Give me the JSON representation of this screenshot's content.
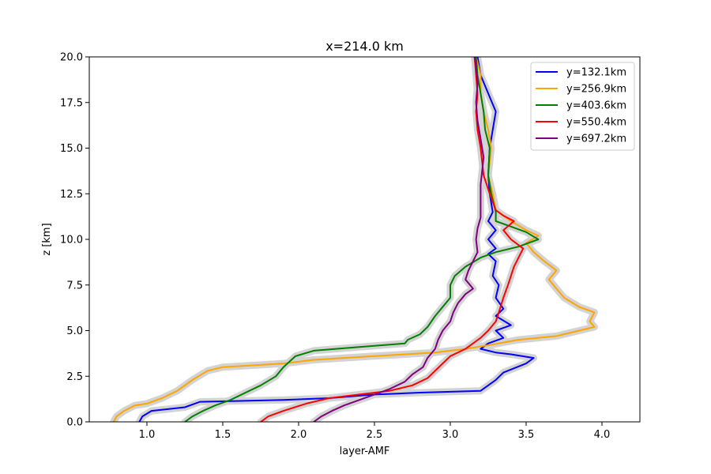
{
  "chart_data": {
    "type": "line",
    "title": "x=214.0 km",
    "xlabel": "layer-AMF",
    "ylabel": "z [km]",
    "xlim": [
      0.62,
      4.25
    ],
    "ylim": [
      0,
      20
    ],
    "xticks": [
      1.0,
      1.5,
      2.0,
      2.5,
      3.0,
      3.5,
      4.0
    ],
    "yticks": [
      0.0,
      2.5,
      5.0,
      7.5,
      10.0,
      12.5,
      15.0,
      17.5,
      20.0
    ],
    "grid": false,
    "legend_position": "top-right",
    "uncertainty_band_color": "#d3d3d3",
    "series": [
      {
        "name": "y=132.1km",
        "color": "#0000ff",
        "points": [
          [
            0.95,
            0
          ],
          [
            0.97,
            0.3
          ],
          [
            1.03,
            0.6
          ],
          [
            1.25,
            0.8
          ],
          [
            1.35,
            1.1
          ],
          [
            1.9,
            1.2
          ],
          [
            2.2,
            1.3
          ],
          [
            2.5,
            1.5
          ],
          [
            2.8,
            1.6
          ],
          [
            3.2,
            1.7
          ],
          [
            3.25,
            2.0
          ],
          [
            3.3,
            2.3
          ],
          [
            3.35,
            2.7
          ],
          [
            3.5,
            3.2
          ],
          [
            3.55,
            3.5
          ],
          [
            3.4,
            3.7
          ],
          [
            3.3,
            3.8
          ],
          [
            3.2,
            4.0
          ],
          [
            3.25,
            4.3
          ],
          [
            3.35,
            4.6
          ],
          [
            3.3,
            5.0
          ],
          [
            3.4,
            5.3
          ],
          [
            3.3,
            5.8
          ],
          [
            3.35,
            6.2
          ],
          [
            3.3,
            6.8
          ],
          [
            3.32,
            7.5
          ],
          [
            3.28,
            8.0
          ],
          [
            3.3,
            8.8
          ],
          [
            3.25,
            9.2
          ],
          [
            3.3,
            9.5
          ],
          [
            3.25,
            10.0
          ],
          [
            3.3,
            10.5
          ],
          [
            3.25,
            11.0
          ],
          [
            3.28,
            11.5
          ],
          [
            3.26,
            12.5
          ],
          [
            3.25,
            13.5
          ],
          [
            3.26,
            15.0
          ],
          [
            3.28,
            16.0
          ],
          [
            3.3,
            17.0
          ],
          [
            3.25,
            18.0
          ],
          [
            3.2,
            19.0
          ],
          [
            3.18,
            20.0
          ]
        ]
      },
      {
        "name": "y=256.9km",
        "color": "#ffa500",
        "points": [
          [
            0.78,
            0
          ],
          [
            0.8,
            0.3
          ],
          [
            0.85,
            0.6
          ],
          [
            0.92,
            0.9
          ],
          [
            1.0,
            1.0
          ],
          [
            1.1,
            1.3
          ],
          [
            1.2,
            1.7
          ],
          [
            1.3,
            2.3
          ],
          [
            1.4,
            2.8
          ],
          [
            1.5,
            3.0
          ],
          [
            1.9,
            3.2
          ],
          [
            2.1,
            3.4
          ],
          [
            2.5,
            3.6
          ],
          [
            2.9,
            3.8
          ],
          [
            3.1,
            4.0
          ],
          [
            3.25,
            4.2
          ],
          [
            3.45,
            4.5
          ],
          [
            3.7,
            4.7
          ],
          [
            3.95,
            5.2
          ],
          [
            3.92,
            5.5
          ],
          [
            3.95,
            6.0
          ],
          [
            3.85,
            6.3
          ],
          [
            3.75,
            6.8
          ],
          [
            3.7,
            7.3
          ],
          [
            3.65,
            7.8
          ],
          [
            3.7,
            8.3
          ],
          [
            3.62,
            8.8
          ],
          [
            3.55,
            9.3
          ],
          [
            3.5,
            9.8
          ],
          [
            3.58,
            10.2
          ],
          [
            3.5,
            10.5
          ],
          [
            3.4,
            11.0
          ],
          [
            3.35,
            11.3
          ],
          [
            3.3,
            11.6
          ],
          [
            3.28,
            12.5
          ],
          [
            3.25,
            13.5
          ],
          [
            3.27,
            15.0
          ],
          [
            3.25,
            16.0
          ],
          [
            3.22,
            17.0
          ],
          [
            3.2,
            18.0
          ],
          [
            3.2,
            19.0
          ],
          [
            3.17,
            20.0
          ]
        ]
      },
      {
        "name": "y=403.6km",
        "color": "#008000",
        "points": [
          [
            1.25,
            0
          ],
          [
            1.3,
            0.3
          ],
          [
            1.37,
            0.6
          ],
          [
            1.45,
            0.9
          ],
          [
            1.55,
            1.2
          ],
          [
            1.65,
            1.6
          ],
          [
            1.75,
            2.0
          ],
          [
            1.85,
            2.5
          ],
          [
            1.9,
            3.0
          ],
          [
            1.98,
            3.6
          ],
          [
            2.1,
            3.9
          ],
          [
            2.4,
            4.1
          ],
          [
            2.7,
            4.3
          ],
          [
            2.72,
            4.5
          ],
          [
            2.8,
            4.8
          ],
          [
            2.85,
            5.2
          ],
          [
            2.9,
            5.8
          ],
          [
            2.95,
            6.3
          ],
          [
            3.0,
            6.8
          ],
          [
            3.0,
            7.5
          ],
          [
            3.03,
            8.0
          ],
          [
            3.1,
            8.5
          ],
          [
            3.2,
            9.0
          ],
          [
            3.3,
            9.3
          ],
          [
            3.45,
            9.6
          ],
          [
            3.58,
            10.0
          ],
          [
            3.5,
            10.4
          ],
          [
            3.4,
            10.7
          ],
          [
            3.3,
            11.0
          ],
          [
            3.3,
            11.5
          ],
          [
            3.27,
            12.5
          ],
          [
            3.25,
            13.5
          ],
          [
            3.26,
            15.0
          ],
          [
            3.23,
            16.0
          ],
          [
            3.22,
            17.0
          ],
          [
            3.2,
            18.0
          ],
          [
            3.18,
            19.0
          ],
          [
            3.17,
            20.0
          ]
        ]
      },
      {
        "name": "y=550.4km",
        "color": "#ff0000",
        "points": [
          [
            1.75,
            0
          ],
          [
            1.8,
            0.3
          ],
          [
            1.9,
            0.6
          ],
          [
            2.05,
            1.0
          ],
          [
            2.2,
            1.3
          ],
          [
            2.4,
            1.5
          ],
          [
            2.6,
            1.7
          ],
          [
            2.75,
            2.0
          ],
          [
            2.85,
            2.4
          ],
          [
            2.9,
            2.8
          ],
          [
            2.95,
            3.2
          ],
          [
            3.0,
            3.6
          ],
          [
            3.1,
            4.0
          ],
          [
            3.15,
            4.3
          ],
          [
            3.2,
            4.6
          ],
          [
            3.25,
            5.0
          ],
          [
            3.3,
            5.5
          ],
          [
            3.32,
            6.0
          ],
          [
            3.35,
            6.8
          ],
          [
            3.38,
            7.5
          ],
          [
            3.4,
            8.0
          ],
          [
            3.42,
            8.5
          ],
          [
            3.45,
            9.0
          ],
          [
            3.48,
            9.5
          ],
          [
            3.4,
            10.0
          ],
          [
            3.35,
            10.5
          ],
          [
            3.42,
            11.0
          ],
          [
            3.35,
            11.3
          ],
          [
            3.3,
            11.6
          ],
          [
            3.26,
            12.5
          ],
          [
            3.22,
            13.5
          ],
          [
            3.2,
            15.0
          ],
          [
            3.18,
            16.0
          ],
          [
            3.17,
            17.0
          ],
          [
            3.18,
            18.0
          ],
          [
            3.17,
            19.0
          ],
          [
            3.16,
            20.0
          ]
        ]
      },
      {
        "name": "y=697.2km",
        "color": "#800080",
        "points": [
          [
            2.1,
            0
          ],
          [
            2.15,
            0.3
          ],
          [
            2.22,
            0.6
          ],
          [
            2.3,
            0.9
          ],
          [
            2.4,
            1.2
          ],
          [
            2.5,
            1.5
          ],
          [
            2.6,
            1.8
          ],
          [
            2.7,
            2.2
          ],
          [
            2.75,
            2.6
          ],
          [
            2.82,
            3.0
          ],
          [
            2.85,
            3.5
          ],
          [
            2.9,
            4.0
          ],
          [
            2.92,
            4.5
          ],
          [
            2.95,
            5.0
          ],
          [
            3.0,
            5.5
          ],
          [
            3.02,
            6.0
          ],
          [
            3.05,
            6.5
          ],
          [
            3.1,
            7.0
          ],
          [
            3.15,
            7.3
          ],
          [
            3.1,
            7.8
          ],
          [
            3.12,
            8.3
          ],
          [
            3.15,
            8.8
          ],
          [
            3.18,
            9.3
          ],
          [
            3.17,
            10.0
          ],
          [
            3.18,
            10.6
          ],
          [
            3.2,
            11.2
          ],
          [
            3.2,
            12.0
          ],
          [
            3.2,
            13.0
          ],
          [
            3.22,
            14.5
          ],
          [
            3.2,
            15.5
          ],
          [
            3.18,
            16.5
          ],
          [
            3.17,
            17.5
          ],
          [
            3.18,
            18.5
          ],
          [
            3.17,
            19.5
          ],
          [
            3.16,
            20.0
          ]
        ]
      }
    ]
  }
}
